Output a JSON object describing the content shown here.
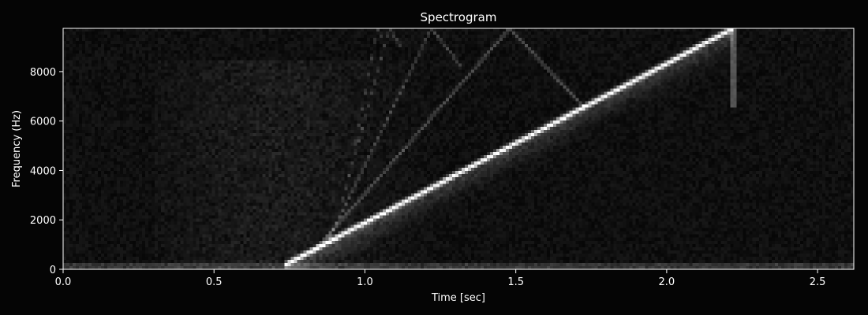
{
  "chart_data": {
    "type": "heatmap",
    "title": "Spectrogram",
    "xlabel": "Time [sec]",
    "ylabel": "Frequency (Hz)",
    "xlim": [
      0.0,
      2.62
    ],
    "ylim": [
      0,
      9750
    ],
    "x_ticks": [
      0.0,
      0.5,
      1.0,
      1.5,
      2.0,
      2.5
    ],
    "x_tick_labels": [
      "0.0",
      "0.5",
      "1.0",
      "1.5",
      "2.0",
      "2.5"
    ],
    "y_ticks": [
      0,
      2000,
      4000,
      6000,
      8000
    ],
    "y_tick_labels": [
      "0",
      "2000",
      "4000",
      "6000",
      "8000"
    ],
    "grid": false,
    "colormap": "gray",
    "features": [
      {
        "kind": "sweep",
        "x": [
          0.73,
          2.22
        ],
        "y": [
          150,
          9750
        ],
        "intensity": 1.0
      },
      {
        "kind": "alias",
        "x": [
          0.83,
          1.48,
          1.73
        ],
        "y": [
          700,
          9750,
          6500
        ],
        "intensity": 0.25
      },
      {
        "kind": "alias",
        "x": [
          0.88,
          1.22,
          1.32
        ],
        "y": [
          1200,
          9750,
          8200
        ],
        "intensity": 0.22
      },
      {
        "kind": "alias",
        "x": [
          0.92,
          1.08,
          1.12
        ],
        "y": [
          2500,
          9750,
          9000
        ],
        "intensity": 0.2
      },
      {
        "kind": "alias",
        "x": [
          0.96,
          1.04,
          1.06
        ],
        "y": [
          4500,
          9750,
          9300
        ],
        "intensity": 0.18
      }
    ]
  },
  "colors": {
    "background": "#050505",
    "axes_face": "#000000",
    "text": "#ffffff",
    "spine": "#ffffff"
  }
}
